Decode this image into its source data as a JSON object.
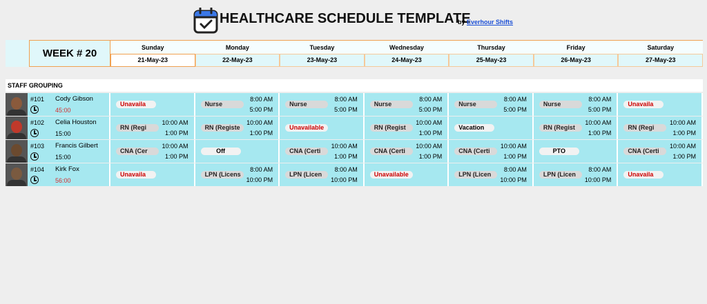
{
  "header": {
    "title": "HEALTHCARE SCHEDULE TEMPLATE",
    "by": "by",
    "link": "Everhour Shifts"
  },
  "week": "WEEK # 20",
  "days": [
    {
      "name": "Sunday",
      "date": "21-May-23"
    },
    {
      "name": "Monday",
      "date": "22-May-23"
    },
    {
      "name": "Tuesday",
      "date": "23-May-23"
    },
    {
      "name": "Wednesday",
      "date": "24-May-23"
    },
    {
      "name": "Thursday",
      "date": "25-May-23"
    },
    {
      "name": "Friday",
      "date": "26-May-23"
    },
    {
      "name": "Saturday",
      "date": "27-May-23"
    }
  ],
  "group_label": "STAFF GROUPING",
  "staff": [
    {
      "id": "#101",
      "name": "Cody Gibson",
      "hours": "45:00",
      "hours_color": "#d32f2f",
      "shifts": [
        {
          "label": "Unavaila",
          "color": "#cc0000"
        },
        {
          "label": "Nurse",
          "start": "8:00 AM",
          "end": "5:00 PM"
        },
        {
          "label": "Nurse",
          "start": "8:00 AM",
          "end": "5:00 PM"
        },
        {
          "label": "Nurse",
          "start": "8:00 AM",
          "end": "5:00 PM"
        },
        {
          "label": "Nurse",
          "start": "8:00 AM",
          "end": "5:00 PM"
        },
        {
          "label": "Nurse",
          "start": "8:00 AM",
          "end": "5:00 PM"
        },
        {
          "label": "Unavaila",
          "color": "#cc0000"
        }
      ]
    },
    {
      "id": "#102",
      "name": "Celia Houston",
      "hours": "15:00",
      "hours_color": "#000000",
      "shifts": [
        {
          "label": "RN (Regi",
          "start": "10:00 AM",
          "end": "1:00 PM"
        },
        {
          "label": "RN (Registe",
          "start": "10:00 AM",
          "end": "1:00 PM"
        },
        {
          "label": "Unavailable",
          "color": "#cc0000"
        },
        {
          "label": "RN (Regist",
          "start": "10:00 AM",
          "end": "1:00 PM"
        },
        {
          "label": "Vacation",
          "color": "#000000"
        },
        {
          "label": "RN (Regist",
          "start": "10:00 AM",
          "end": "1:00 PM"
        },
        {
          "label": "RN (Regi",
          "start": "10:00 AM",
          "end": "1:00 PM"
        }
      ]
    },
    {
      "id": "#103",
      "name": "Francis Gilbert",
      "hours": "15:00",
      "hours_color": "#000000",
      "shifts": [
        {
          "label": "CNA (Cer",
          "start": "10:00 AM",
          "end": "1:00 PM"
        },
        {
          "label": "Off",
          "color": "#000000"
        },
        {
          "label": "CNA (Certi",
          "start": "10:00 AM",
          "end": "1:00 PM"
        },
        {
          "label": "CNA (Certi",
          "start": "10:00 AM",
          "end": "1:00 PM"
        },
        {
          "label": "CNA (Certi",
          "start": "10:00 AM",
          "end": "1:00 PM"
        },
        {
          "label": "PTO",
          "color": "#000000"
        },
        {
          "label": "CNA (Certi",
          "start": "10:00 AM",
          "end": "1:00 PM"
        }
      ]
    },
    {
      "id": "#104",
      "name": "Kirk Fox",
      "hours": "56:00",
      "hours_color": "#d32f2f",
      "shifts": [
        {
          "label": "Unavaila",
          "color": "#cc0000"
        },
        {
          "label": "LPN (Licens",
          "start": "8:00 AM",
          "end": "10:00 PM"
        },
        {
          "label": "LPN (Licen",
          "start": "8:00 AM",
          "end": "10:00 PM"
        },
        {
          "label": "Unavailable",
          "color": "#cc0000"
        },
        {
          "label": "LPN (Licen",
          "start": "8:00 AM",
          "end": "10:00 PM"
        },
        {
          "label": "LPN (Licen",
          "start": "8:00 AM",
          "end": "10:00 PM"
        },
        {
          "label": "Unavaila",
          "color": "#cc0000"
        }
      ]
    }
  ]
}
